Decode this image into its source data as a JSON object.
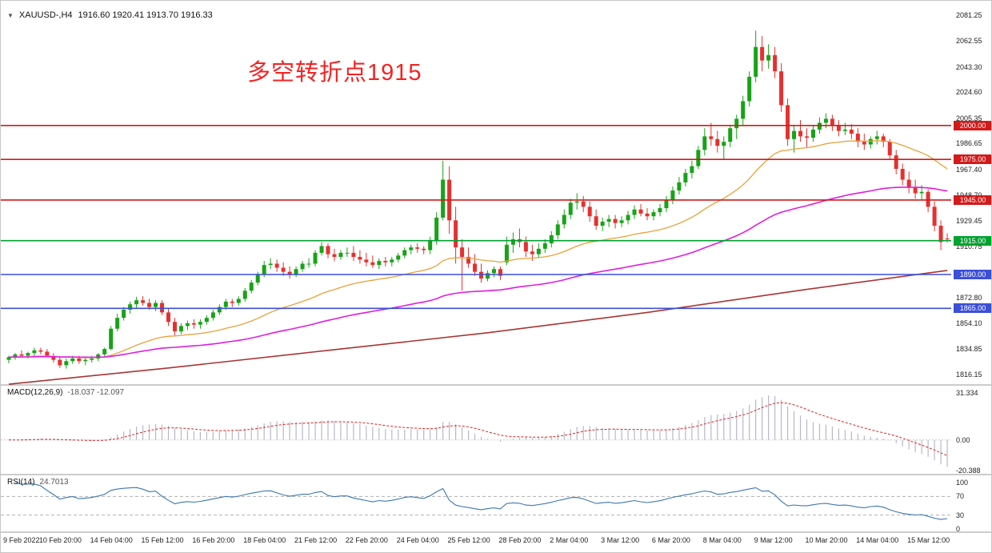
{
  "header": {
    "marker_icon": "▼",
    "symbol_timeframe": "XAUUSD-,H4",
    "ohlc_text": "1916.60 1920.41 1913.70 1916.33"
  },
  "colors": {
    "candle_up": "#17a317",
    "candle_down": "#e63030",
    "ma_fast": "#e8a23a",
    "ma_mid": "#e01ee0",
    "ma_slow": "#aa3333",
    "macd_hist": "#b8b8c8",
    "macd_signal": "#dd2222",
    "rsi_line": "#3a78b0",
    "level_red": "#d21a1a",
    "level_green": "#00a230",
    "level_blue": "#3b4fd8"
  },
  "chart_data": {
    "type": "candlestick",
    "symbol": "XAUUSD-",
    "timeframe": "H4",
    "title": "XAUUSD- H4 chart with MACD and RSI",
    "ylim": [
      1812,
      2085
    ],
    "x_label_step": 8,
    "x_labels": [
      "9 Feb 2022",
      "10 Feb 20:00",
      "14 Feb 04:00",
      "15 Feb 12:00",
      "16 Feb 20:00",
      "18 Feb 04:00",
      "21 Feb 12:00",
      "22 Feb 20:00",
      "24 Feb 04:00",
      "25 Feb 12:00",
      "28 Feb 20:00",
      "2 Mar 04:00",
      "3 Mar 12:00",
      "6 Mar 20:00",
      "8 Mar 04:00",
      "9 Mar 12:00",
      "10 Mar 20:00",
      "14 Mar 04:00",
      "15 Mar 12:00"
    ],
    "y_axis_labels": [
      {
        "text": "2081.25",
        "price": 2081.25
      },
      {
        "text": "2062.55",
        "price": 2062.55
      },
      {
        "text": "2043.30",
        "price": 2043.3
      },
      {
        "text": "2024.60",
        "price": 2024.6
      },
      {
        "text": "2005.35",
        "price": 2005.35
      },
      {
        "text": "1986.65",
        "price": 1986.65
      },
      {
        "text": "1967.40",
        "price": 1967.4
      },
      {
        "text": "1948.70",
        "price": 1948.7
      },
      {
        "text": "1929.45",
        "price": 1929.45
      },
      {
        "text": "1910.75",
        "price": 1910.75
      },
      {
        "text": "1872.80",
        "price": 1872.8
      },
      {
        "text": "1854.10",
        "price": 1854.1
      },
      {
        "text": "1834.85",
        "price": 1834.85
      },
      {
        "text": "1816.15",
        "price": 1816.15
      }
    ],
    "price_lines": [
      {
        "label": "2000.00",
        "price": 2000,
        "color": "#d21a1a"
      },
      {
        "label": "1975.00",
        "price": 1975,
        "color": "#d21a1a"
      },
      {
        "label": "1945.00",
        "price": 1945,
        "color": "#d21a1a"
      },
      {
        "label": "1915.00",
        "price": 1915,
        "color": "#00a230"
      },
      {
        "label": "1890.00",
        "price": 1890,
        "color": "#3b4fd8"
      },
      {
        "label": "1865.00",
        "price": 1865,
        "color": "#3b4fd8"
      }
    ],
    "annotation": {
      "text": "多空转折点1915",
      "color": "#f52222"
    },
    "moving_averages": [
      {
        "name": "fast",
        "method": "ema",
        "period": 34,
        "color": "#e8a23a",
        "width": 1.3
      },
      {
        "name": "mid",
        "method": "ema",
        "period": 89,
        "color": "#e01ee0",
        "width": 1.6
      },
      {
        "name": "slow",
        "method": "points",
        "color": "#aa3333",
        "width": 1.6,
        "points": [
          [
            0,
            1809
          ],
          [
            25,
            1821
          ],
          [
            50,
            1834
          ],
          [
            75,
            1847
          ],
          [
            100,
            1862
          ],
          [
            125,
            1879
          ],
          [
            147,
            1893
          ]
        ]
      }
    ],
    "ohlc": [
      [
        1827,
        1830,
        1824.5,
        1829
      ],
      [
        1829,
        1832,
        1827,
        1831
      ],
      [
        1831,
        1834,
        1829,
        1830
      ],
      [
        1830,
        1833,
        1828,
        1832
      ],
      [
        1832,
        1836,
        1830,
        1834
      ],
      [
        1834,
        1836,
        1831,
        1833
      ],
      [
        1833,
        1835,
        1829,
        1830
      ],
      [
        1830,
        1832,
        1825,
        1827
      ],
      [
        1827,
        1829,
        1821,
        1823
      ],
      [
        1823,
        1828,
        1820.5,
        1826
      ],
      [
        1826,
        1830,
        1824,
        1828
      ],
      [
        1828,
        1830,
        1824,
        1826
      ],
      [
        1826,
        1829,
        1823,
        1827
      ],
      [
        1827,
        1830,
        1825,
        1828
      ],
      [
        1828,
        1832,
        1826,
        1831
      ],
      [
        1831,
        1836,
        1829,
        1835
      ],
      [
        1835,
        1852,
        1834,
        1850
      ],
      [
        1850,
        1861,
        1848,
        1858
      ],
      [
        1858,
        1866,
        1856,
        1864
      ],
      [
        1864,
        1870,
        1861,
        1868
      ],
      [
        1868,
        1873.5,
        1865,
        1871
      ],
      [
        1871,
        1874,
        1867,
        1869
      ],
      [
        1869,
        1872,
        1864,
        1866
      ],
      [
        1866,
        1871,
        1863,
        1869
      ],
      [
        1869,
        1871,
        1860,
        1862
      ],
      [
        1862,
        1865,
        1852,
        1855
      ],
      [
        1855,
        1858,
        1845,
        1848
      ],
      [
        1848,
        1854,
        1846,
        1852
      ],
      [
        1852,
        1856,
        1849,
        1854
      ],
      [
        1854,
        1857,
        1850,
        1853
      ],
      [
        1853,
        1857,
        1850,
        1855
      ],
      [
        1855,
        1860,
        1853,
        1858
      ],
      [
        1858,
        1864,
        1856,
        1862
      ],
      [
        1862,
        1868,
        1860,
        1866
      ],
      [
        1866,
        1872,
        1864,
        1870
      ],
      [
        1870,
        1872,
        1866,
        1869
      ],
      [
        1869,
        1874,
        1867,
        1872
      ],
      [
        1872,
        1880,
        1870,
        1878
      ],
      [
        1878,
        1886,
        1876,
        1884
      ],
      [
        1884,
        1892,
        1882,
        1890
      ],
      [
        1890,
        1900,
        1888,
        1897
      ],
      [
        1897,
        1902,
        1894,
        1898
      ],
      [
        1898,
        1901,
        1892,
        1895
      ],
      [
        1895,
        1899,
        1889,
        1892
      ],
      [
        1892,
        1896,
        1887,
        1890
      ],
      [
        1890,
        1896,
        1888,
        1894
      ],
      [
        1894,
        1900,
        1892,
        1898
      ],
      [
        1898,
        1902,
        1895,
        1898
      ],
      [
        1898,
        1908,
        1896,
        1906
      ],
      [
        1906,
        1914,
        1904,
        1911
      ],
      [
        1911,
        1913,
        1902,
        1905
      ],
      [
        1905,
        1909,
        1900,
        1903
      ],
      [
        1903,
        1908,
        1901,
        1906
      ],
      [
        1906,
        1910,
        1903,
        1906
      ],
      [
        1906,
        1911,
        1900,
        1903
      ],
      [
        1903,
        1908,
        1898,
        1901
      ],
      [
        1901,
        1906,
        1896,
        1899
      ],
      [
        1899,
        1904,
        1895,
        1897
      ],
      [
        1897,
        1902,
        1894,
        1900
      ],
      [
        1900,
        1903,
        1896,
        1899
      ],
      [
        1899,
        1903,
        1896,
        1901
      ],
      [
        1901,
        1906,
        1899,
        1904
      ],
      [
        1904,
        1910,
        1902,
        1908
      ],
      [
        1908,
        1912,
        1905,
        1910
      ],
      [
        1910,
        1913,
        1906,
        1909
      ],
      [
        1909,
        1911,
        1905,
        1908
      ],
      [
        1908,
        1918,
        1905,
        1915
      ],
      [
        1915,
        1936,
        1912,
        1932
      ],
      [
        1932,
        1974,
        1930,
        1960
      ],
      [
        1960,
        1970,
        1920,
        1930
      ],
      [
        1930,
        1940,
        1898,
        1910
      ],
      [
        1910,
        1916,
        1878,
        1903
      ],
      [
        1903,
        1910,
        1895,
        1898
      ],
      [
        1898,
        1905,
        1889,
        1892
      ],
      [
        1892,
        1898,
        1884,
        1887
      ],
      [
        1887,
        1893,
        1885,
        1891
      ],
      [
        1891,
        1896,
        1888,
        1894
      ],
      [
        1894,
        1896,
        1886,
        1889
      ],
      [
        1899,
        1918,
        1897,
        1912
      ],
      [
        1912,
        1921,
        1906,
        1916
      ],
      [
        1916,
        1924,
        1910,
        1914
      ],
      [
        1914,
        1918,
        1903,
        1907
      ],
      [
        1907,
        1912,
        1900,
        1905
      ],
      [
        1905,
        1913,
        1902,
        1909
      ],
      [
        1909,
        1916,
        1906,
        1913
      ],
      [
        1913,
        1922,
        1910,
        1919
      ],
      [
        1919,
        1930,
        1916,
        1927
      ],
      [
        1927,
        1938,
        1924,
        1934
      ],
      [
        1934,
        1946,
        1931,
        1943
      ],
      [
        1943,
        1950,
        1938,
        1944
      ],
      [
        1944,
        1948,
        1936,
        1940
      ],
      [
        1940,
        1944,
        1929,
        1933
      ],
      [
        1933,
        1938,
        1923,
        1926
      ],
      [
        1926,
        1932,
        1922,
        1929
      ],
      [
        1929,
        1934,
        1925,
        1931
      ],
      [
        1931,
        1934,
        1924,
        1928
      ],
      [
        1928,
        1933,
        1925,
        1930
      ],
      [
        1930,
        1937,
        1927,
        1934
      ],
      [
        1934,
        1941,
        1931,
        1938
      ],
      [
        1938,
        1942,
        1933,
        1935
      ],
      [
        1935,
        1939,
        1930,
        1933
      ],
      [
        1933,
        1938,
        1930,
        1936
      ],
      [
        1936,
        1942,
        1933,
        1939
      ],
      [
        1939,
        1948,
        1936,
        1945
      ],
      [
        1945,
        1955,
        1942,
        1952
      ],
      [
        1952,
        1962,
        1949,
        1958
      ],
      [
        1958,
        1968,
        1955,
        1965
      ],
      [
        1965,
        1974,
        1961,
        1970
      ],
      [
        1970,
        1985,
        1968,
        1982
      ],
      [
        1982,
        1998,
        1978,
        1992
      ],
      [
        1992,
        2002,
        1985,
        1990
      ],
      [
        1990,
        1996,
        1980,
        1985
      ],
      [
        1985,
        1992,
        1975,
        1988
      ],
      [
        1988,
        2000,
        1984,
        1998
      ],
      [
        1998,
        2008,
        1990,
        2005
      ],
      [
        2005,
        2022,
        2000,
        2018
      ],
      [
        2018,
        2040,
        2014,
        2036
      ],
      [
        2036,
        2070,
        2032,
        2058
      ],
      [
        2058,
        2066,
        2040,
        2048
      ],
      [
        2048,
        2060,
        2042,
        2052
      ],
      [
        2052,
        2058,
        2035,
        2040
      ],
      [
        2040,
        2046,
        2010,
        2015
      ],
      [
        2015,
        2020,
        1985,
        1990
      ],
      [
        1990,
        2000,
        1980,
        1996
      ],
      [
        1996,
        2004,
        1988,
        1992
      ],
      [
        1992,
        1998,
        1984,
        1991
      ],
      [
        1991,
        2000,
        1988,
        1997
      ],
      [
        1997,
        2006,
        1994,
        2002
      ],
      [
        2002,
        2009,
        1998,
        2005
      ],
      [
        2005,
        2008,
        1996,
        2000
      ],
      [
        2000,
        2004,
        1992,
        1996
      ],
      [
        1996,
        2002,
        1993,
        1997
      ],
      [
        1997,
        2001,
        1990,
        1994
      ],
      [
        1994,
        1998,
        1984,
        1988
      ],
      [
        1988,
        1994,
        1982,
        1986
      ],
      [
        1986,
        1992,
        1983,
        1990
      ],
      [
        1990,
        1996,
        1986,
        1992
      ],
      [
        1992,
        1994,
        1984,
        1988
      ],
      [
        1988,
        1990,
        1975,
        1978
      ],
      [
        1978,
        1982,
        1964,
        1968
      ],
      [
        1968,
        1972,
        1956,
        1960
      ],
      [
        1960,
        1966,
        1950,
        1954
      ],
      [
        1954,
        1960,
        1946,
        1950
      ],
      [
        1950,
        1956,
        1945,
        1951
      ],
      [
        1951,
        1953,
        1936,
        1940
      ],
      [
        1940,
        1944,
        1922,
        1926
      ],
      [
        1926,
        1930,
        1908,
        1914
      ],
      [
        1916.6,
        1920.4,
        1913.7,
        1916.3
      ]
    ],
    "macd": {
      "label": "MACD(12,26,9)",
      "fast": 12,
      "slow": 26,
      "signal": 9,
      "values_text": "-18.037 -12.097",
      "ylim": [
        -22,
        33
      ],
      "axis_labels": [
        {
          "text": "31.334",
          "value": 31.334
        },
        {
          "text": "0.00",
          "value": 0
        },
        {
          "text": "-20.388",
          "value": -20.388
        }
      ]
    },
    "rsi": {
      "label": "RSI(14)",
      "period": 14,
      "value_text": "24.7013",
      "ylim": [
        0,
        100
      ],
      "levels": [
        70,
        30
      ],
      "axis_labels": [
        {
          "text": "100",
          "value": 100
        },
        {
          "text": "70",
          "value": 70
        },
        {
          "text": "30",
          "value": 30
        },
        {
          "text": "0",
          "value": 0
        }
      ]
    }
  }
}
